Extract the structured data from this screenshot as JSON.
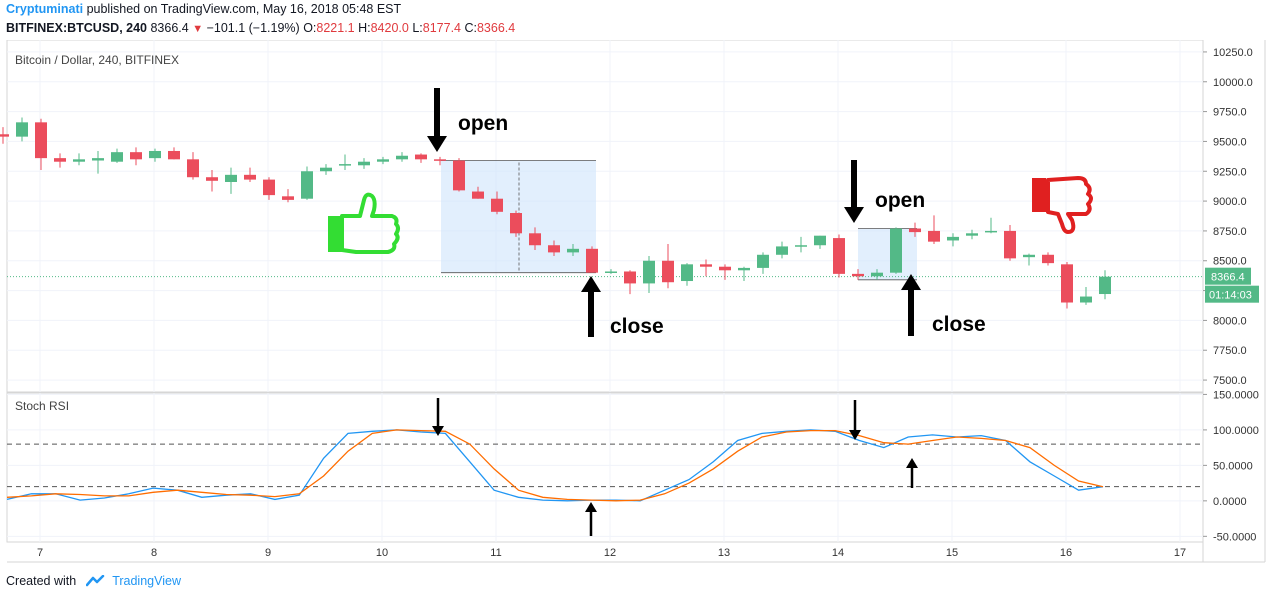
{
  "header": {
    "author": "Cryptuminati",
    "published": "published on TradingView.com, May 16, 2018 05:48 EST",
    "symbol": "BITFINEX:BTCUSD, 240",
    "last": "8366.4",
    "change": "−101.1 (−1.19%)",
    "o_label": "O:",
    "o_value": "8221.1",
    "h_label": "H:",
    "h_value": "8420.0",
    "l_label": "L:",
    "l_value": "8177.4",
    "c_label": "C:",
    "c_value": "8366.4"
  },
  "footer": {
    "created_with": "Created with",
    "brand": "TradingView"
  },
  "colors": {
    "up": "#53b987",
    "down": "#eb4d5c",
    "rsi_k": "#2196f3",
    "rsi_d": "#ff6d00",
    "highlight": "#cfe4fb",
    "thumbs_up": "#33dd33",
    "thumbs_down": "#e02020"
  },
  "chart_data": [
    {
      "type": "candlestick",
      "title": "Bitcoin / Dollar, 240, BITFINEX",
      "ylim": [
        7400,
        10350
      ],
      "yticks": [
        "7500.0",
        "7750.0",
        "8000.0",
        "8250.0",
        "8500.0",
        "8750.0",
        "9000.0",
        "9250.0",
        "9500.0",
        "9750.0",
        "10000.0",
        "10250.0"
      ],
      "xticks": [
        "7",
        "8",
        "9",
        "10",
        "11",
        "12",
        "13",
        "14",
        "15",
        "16",
        "17"
      ],
      "last_price_label": "8366.4",
      "countdown_label": "01:14:03",
      "annotations": [
        "open",
        "close",
        "open",
        "close"
      ],
      "ohlc": [
        [
          9560,
          9620,
          9480,
          9540
        ],
        [
          9540,
          9700,
          9500,
          9660
        ],
        [
          9660,
          9690,
          9260,
          9360
        ],
        [
          9360,
          9400,
          9280,
          9330
        ],
        [
          9330,
          9400,
          9300,
          9350
        ],
        [
          9340,
          9420,
          9230,
          9360
        ],
        [
          9330,
          9440,
          9320,
          9410
        ],
        [
          9410,
          9450,
          9300,
          9350
        ],
        [
          9360,
          9440,
          9330,
          9420
        ],
        [
          9420,
          9450,
          9350,
          9350
        ],
        [
          9350,
          9410,
          9180,
          9200
        ],
        [
          9200,
          9260,
          9080,
          9170
        ],
        [
          9160,
          9280,
          9060,
          9220
        ],
        [
          9220,
          9280,
          9160,
          9180
        ],
        [
          9180,
          9200,
          9010,
          9050
        ],
        [
          9040,
          9100,
          8990,
          9010
        ],
        [
          9020,
          9290,
          9010,
          9250
        ],
        [
          9250,
          9310,
          9220,
          9280
        ],
        [
          9300,
          9390,
          9260,
          9310
        ],
        [
          9300,
          9360,
          9270,
          9330
        ],
        [
          9330,
          9370,
          9310,
          9350
        ],
        [
          9350,
          9410,
          9330,
          9380
        ],
        [
          9390,
          9400,
          9320,
          9350
        ],
        [
          9350,
          9370,
          9300,
          9340
        ],
        [
          9340,
          9360,
          9080,
          9090
        ],
        [
          9080,
          9120,
          9020,
          9020
        ],
        [
          9020,
          9080,
          8890,
          8910
        ],
        [
          8900,
          8920,
          8700,
          8730
        ],
        [
          8730,
          8780,
          8590,
          8630
        ],
        [
          8630,
          8670,
          8540,
          8570
        ],
        [
          8570,
          8640,
          8540,
          8600
        ],
        [
          8600,
          8620,
          8400,
          8400
        ],
        [
          8400,
          8430,
          8390,
          8410
        ],
        [
          8410,
          8420,
          8220,
          8310
        ],
        [
          8310,
          8540,
          8230,
          8500
        ],
        [
          8500,
          8640,
          8270,
          8320
        ],
        [
          8330,
          8480,
          8290,
          8470
        ],
        [
          8470,
          8510,
          8370,
          8450
        ],
        [
          8450,
          8470,
          8340,
          8420
        ],
        [
          8420,
          8450,
          8330,
          8440
        ],
        [
          8440,
          8570,
          8390,
          8550
        ],
        [
          8550,
          8660,
          8520,
          8620
        ],
        [
          8620,
          8700,
          8570,
          8630
        ],
        [
          8630,
          8710,
          8600,
          8710
        ],
        [
          8690,
          8720,
          8360,
          8390
        ],
        [
          8390,
          8430,
          8340,
          8370
        ],
        [
          8370,
          8430,
          8340,
          8400
        ],
        [
          8400,
          8780,
          8390,
          8770
        ],
        [
          8770,
          8820,
          8700,
          8740
        ],
        [
          8750,
          8880,
          8640,
          8660
        ],
        [
          8670,
          8730,
          8620,
          8700
        ],
        [
          8710,
          8760,
          8680,
          8730
        ],
        [
          8740,
          8860,
          8730,
          8750
        ],
        [
          8750,
          8800,
          8500,
          8520
        ],
        [
          8530,
          8560,
          8460,
          8550
        ],
        [
          8550,
          8570,
          8460,
          8480
        ],
        [
          8470,
          8490,
          8100,
          8150
        ],
        [
          8150,
          8280,
          8130,
          8200
        ],
        [
          8221.1,
          8420,
          8177.4,
          8366.4
        ]
      ]
    },
    {
      "type": "line",
      "title": "Stoch RSI",
      "ylim": [
        -58,
        152
      ],
      "yticks": [
        "-50.0000",
        "0.0000",
        "50.0000",
        "100.0000",
        "150.0000"
      ],
      "levels": [
        20,
        80
      ],
      "series": [
        {
          "values": [
            2,
            10,
            10,
            1,
            4,
            10,
            18,
            15,
            5,
            8,
            10,
            2,
            8,
            60,
            95,
            98,
            100,
            97,
            95,
            55,
            15,
            5,
            1,
            0,
            1,
            1,
            0,
            15,
            30,
            55,
            85,
            95,
            98,
            100,
            98,
            85,
            75,
            90,
            93,
            90,
            92,
            85,
            55,
            35,
            15,
            20
          ]
        },
        {
          "values": [
            5,
            7,
            10,
            9,
            7,
            7,
            12,
            15,
            12,
            9,
            8,
            6,
            10,
            35,
            70,
            95,
            100,
            99,
            98,
            80,
            45,
            15,
            5,
            2,
            1,
            0,
            1,
            10,
            25,
            45,
            70,
            90,
            97,
            99,
            99,
            92,
            82,
            80,
            85,
            90,
            88,
            85,
            75,
            50,
            28,
            20
          ]
        }
      ]
    }
  ]
}
